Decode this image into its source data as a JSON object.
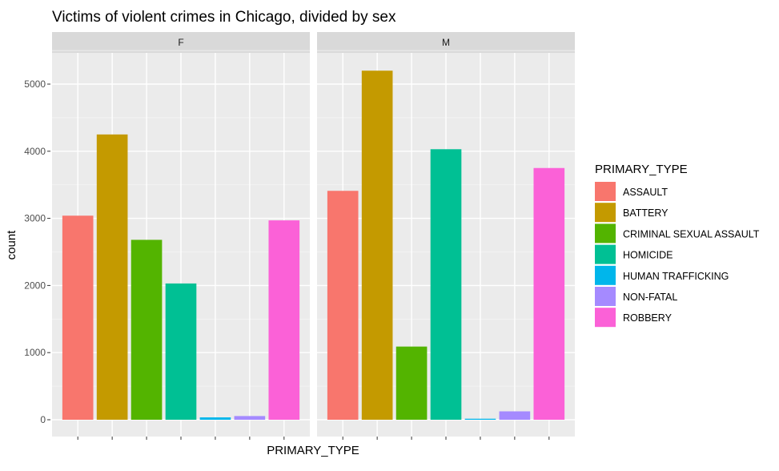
{
  "chart_data": {
    "type": "bar",
    "title": "Victims of violent crimes in Chicago, divided by sex",
    "xlabel": "PRIMARY_TYPE",
    "ylabel": "count",
    "ylim": [
      0,
      5500
    ],
    "yticks": [
      0,
      1000,
      2000,
      3000,
      4000,
      5000
    ],
    "grid": true,
    "legend_position": "right",
    "legend_title": "PRIMARY_TYPE",
    "categories": [
      "ASSAULT",
      "BATTERY",
      "CRIMINAL SEXUAL ASSAULT",
      "HOMICIDE",
      "HUMAN TRAFFICKING",
      "NON-FATAL",
      "ROBBERY"
    ],
    "colors": [
      "#F8766D",
      "#C49A00",
      "#53B400",
      "#00C094",
      "#00B6EB",
      "#A58AFF",
      "#FB61D7"
    ],
    "facets": [
      {
        "label": "F",
        "values": [
          3040,
          4250,
          2680,
          2030,
          35,
          55,
          2970
        ]
      },
      {
        "label": "M",
        "values": [
          3410,
          5200,
          1090,
          4030,
          15,
          125,
          3750
        ]
      }
    ]
  }
}
